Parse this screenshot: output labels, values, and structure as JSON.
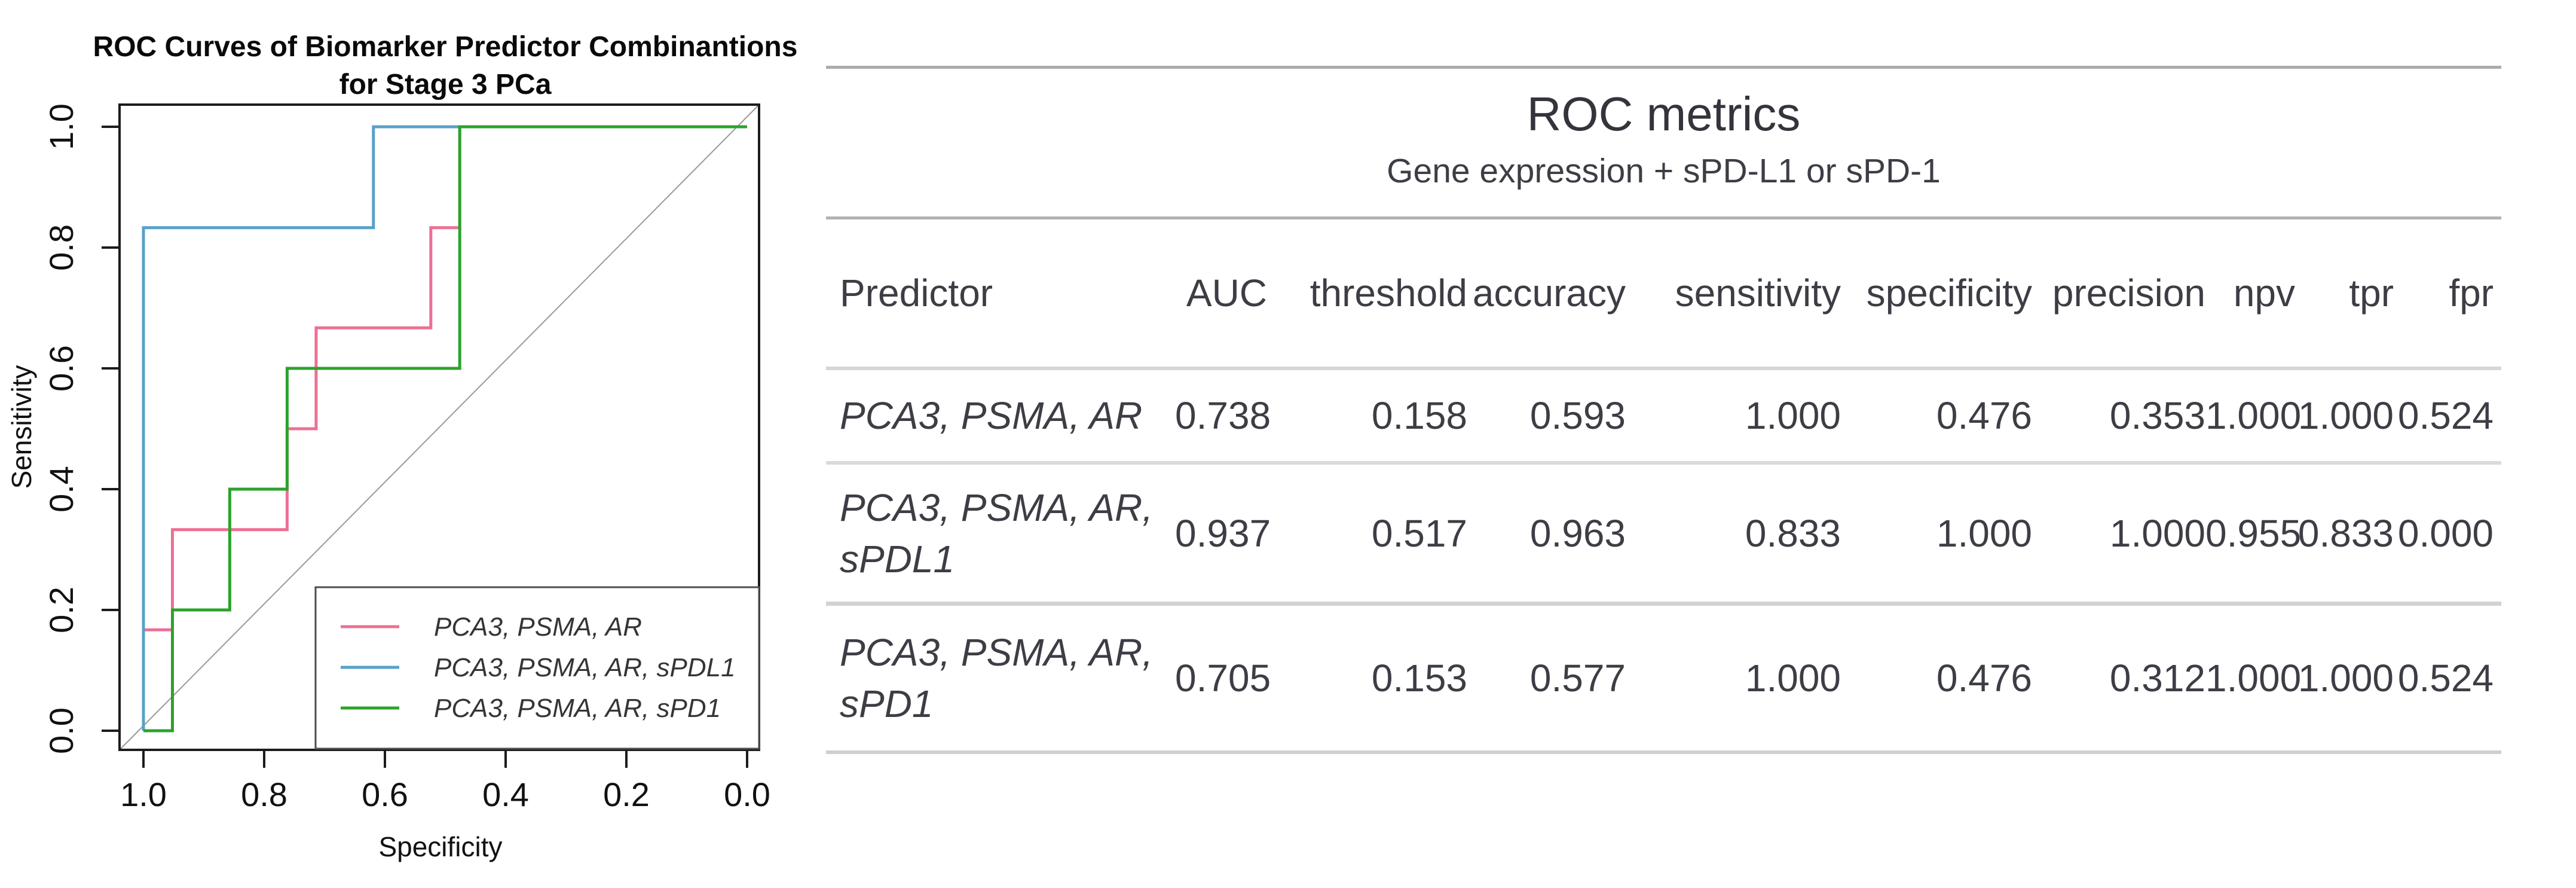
{
  "plot": {
    "title_line1": "ROC Curves of Biomarker Predictor Combinantions",
    "title_line2": "for Stage 3 PCa",
    "xlabel": "Specificity",
    "ylabel": "Sensitivity"
  },
  "chart_data": {
    "type": "line",
    "subtype": "roc-step-curves",
    "title": "ROC Curves of Biomarker Predictor Combinantions for Stage 3 PCa",
    "xlabel": "Specificity",
    "ylabel": "Sensitivity",
    "xlim": [
      1.0,
      0.0
    ],
    "ylim": [
      0.0,
      1.0
    ],
    "x_axis_reversed": true,
    "grid": false,
    "diagonal_reference_line": true,
    "legend_position": "bottomright",
    "x_ticks": [
      "1.0",
      "0.8",
      "0.6",
      "0.4",
      "0.2",
      "0.0"
    ],
    "y_ticks": [
      "0.0",
      "0.2",
      "0.4",
      "0.6",
      "0.8",
      "1.0"
    ],
    "series": [
      {
        "name": "PCA3, PSMA, AR",
        "color": "#ec7093",
        "points": [
          [
            1.0,
            0.0
          ],
          [
            1.0,
            0.167
          ],
          [
            0.952,
            0.167
          ],
          [
            0.952,
            0.333
          ],
          [
            0.762,
            0.333
          ],
          [
            0.762,
            0.5
          ],
          [
            0.714,
            0.5
          ],
          [
            0.714,
            0.667
          ],
          [
            0.524,
            0.667
          ],
          [
            0.524,
            0.833
          ],
          [
            0.476,
            0.833
          ],
          [
            0.476,
            1.0
          ],
          [
            0.0,
            1.0
          ]
        ]
      },
      {
        "name": "PCA3, PSMA, AR, sPDL1",
        "color": "#58a1c8",
        "points": [
          [
            1.0,
            0.0
          ],
          [
            1.0,
            0.833
          ],
          [
            0.619,
            0.833
          ],
          [
            0.619,
            1.0
          ],
          [
            0.0,
            1.0
          ]
        ]
      },
      {
        "name": "PCA3, PSMA, AR, sPD1",
        "color": "#2ba32b",
        "points": [
          [
            1.0,
            0.0
          ],
          [
            0.952,
            0.0
          ],
          [
            0.952,
            0.2
          ],
          [
            0.857,
            0.2
          ],
          [
            0.857,
            0.4
          ],
          [
            0.762,
            0.4
          ],
          [
            0.762,
            0.6
          ],
          [
            0.476,
            0.6
          ],
          [
            0.476,
            1.0
          ],
          [
            0.0,
            1.0
          ]
        ]
      }
    ]
  },
  "table": {
    "title": "ROC metrics",
    "subtitle": "Gene expression + sPD-L1 or sPD-1",
    "columns": [
      "Predictor",
      "AUC",
      "threshold",
      "accuracy",
      "sensitivity",
      "specificity",
      "precision",
      "npv",
      "tpr",
      "fpr"
    ],
    "rows": [
      {
        "predictor": "PCA3, PSMA, AR",
        "predictor_lines": [
          "PCA3, PSMA, AR"
        ],
        "values": [
          "0.738",
          "0.158",
          "0.593",
          "1.000",
          "0.476",
          "0.353",
          "1.000",
          "1.000",
          "0.524"
        ]
      },
      {
        "predictor": "PCA3, PSMA, AR, sPDL1",
        "predictor_lines": [
          "PCA3, PSMA, AR,",
          "sPDL1"
        ],
        "values": [
          "0.937",
          "0.517",
          "0.963",
          "0.833",
          "1.000",
          "1.000",
          "0.955",
          "0.833",
          "0.000"
        ]
      },
      {
        "predictor": "PCA3, PSMA, AR, sPD1",
        "predictor_lines": [
          "PCA3, PSMA, AR,",
          "sPD1"
        ],
        "values": [
          "0.705",
          "0.153",
          "0.577",
          "1.000",
          "0.476",
          "0.312",
          "1.000",
          "1.000",
          "0.524"
        ]
      }
    ]
  },
  "colors": {
    "curve_pink": "#ec7093",
    "curve_blue": "#58a1c8",
    "curve_green": "#2ba32b",
    "diagonal_gray": "#9a9a9a",
    "table_rule_gray": "#c9c9c9",
    "text_dark": "#3d3d45"
  }
}
